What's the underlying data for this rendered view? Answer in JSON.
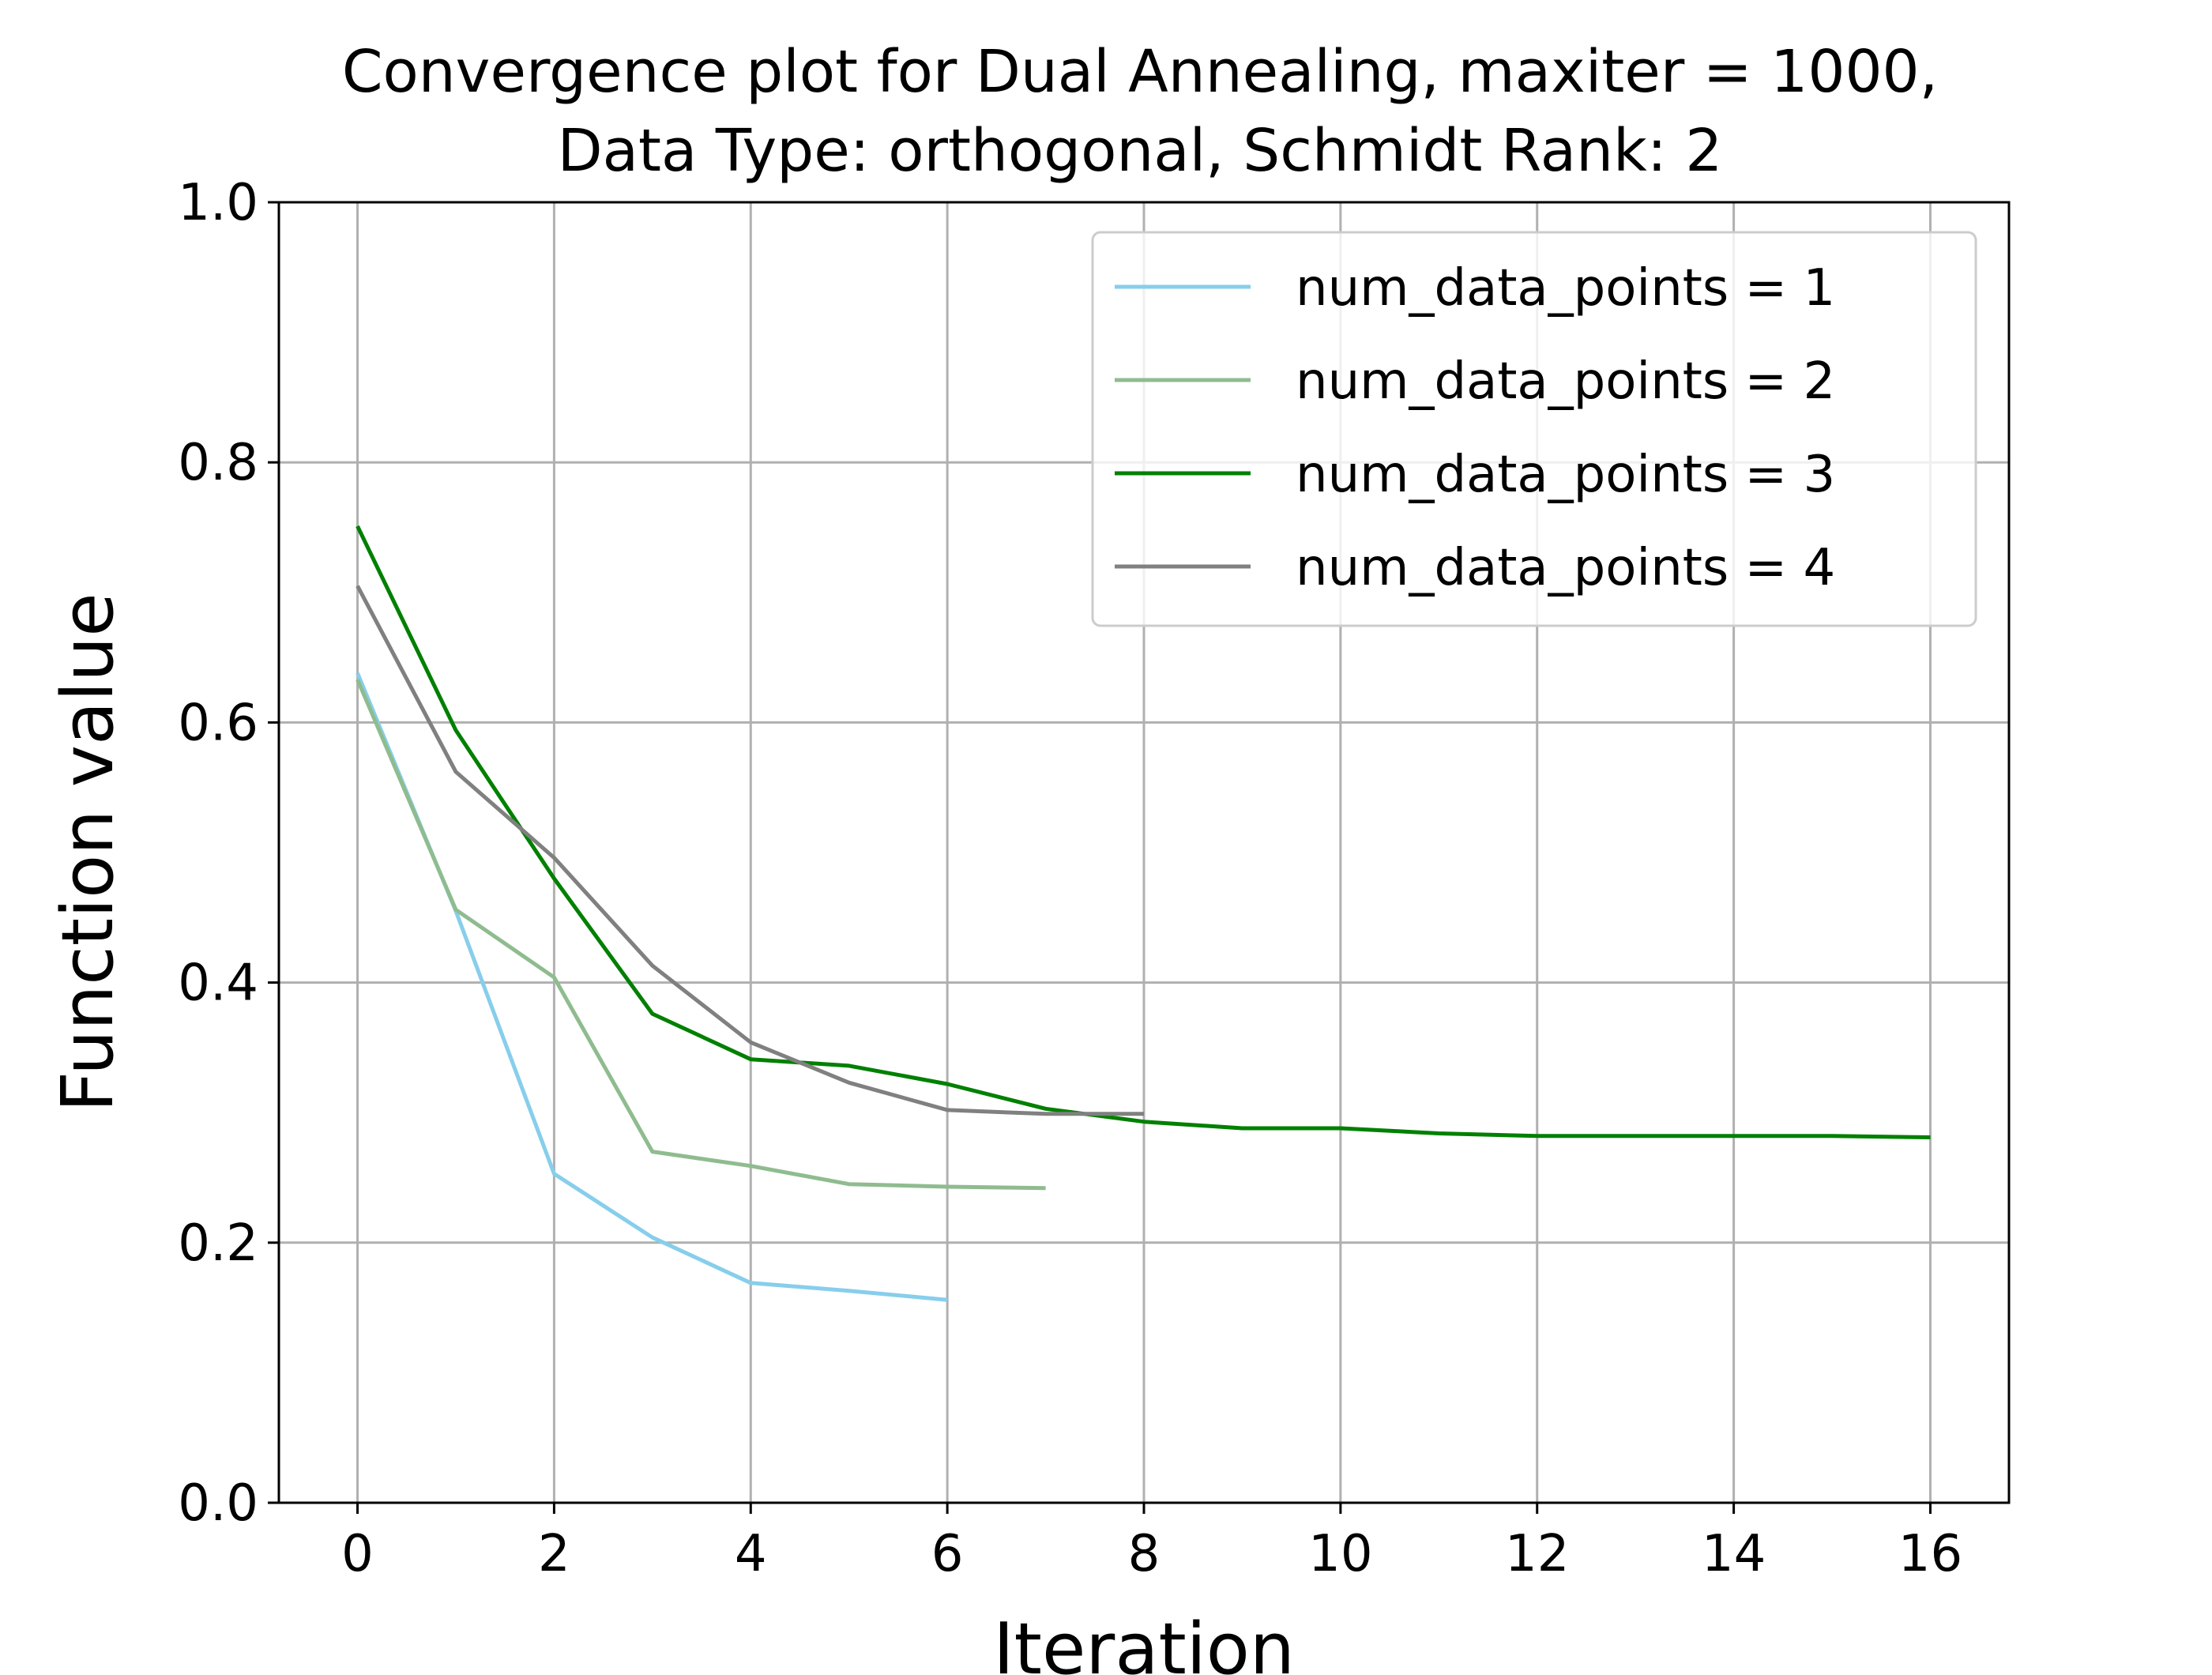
{
  "chart_data": {
    "type": "line",
    "title_lines": [
      "Convergence plot for Dual Annealing, maxiter = 1000,",
      "Data Type: orthogonal, Schmidt Rank: 2"
    ],
    "xlabel": "Iteration",
    "ylabel": "Function value",
    "xlim": [
      -0.8,
      16.8
    ],
    "ylim": [
      0.0,
      1.0
    ],
    "xticks": [
      0,
      2,
      4,
      6,
      8,
      10,
      12,
      14,
      16
    ],
    "xtick_labels": [
      "0",
      "2",
      "4",
      "6",
      "8",
      "10",
      "12",
      "14",
      "16"
    ],
    "yticks": [
      0.0,
      0.2,
      0.4,
      0.6,
      0.8,
      1.0
    ],
    "ytick_labels": [
      "0.0",
      "0.2",
      "0.4",
      "0.6",
      "0.8",
      "1.0"
    ],
    "grid": true,
    "legend_position": "top-right",
    "series": [
      {
        "name": "num_data_points = 1",
        "color": "#87ceeb",
        "x": [
          0,
          1,
          2,
          3,
          4,
          5,
          6
        ],
        "y": [
          0.638,
          0.455,
          0.253,
          0.204,
          0.169,
          0.163,
          0.156
        ]
      },
      {
        "name": "num_data_points = 2",
        "color": "#8fbc8f",
        "x": [
          0,
          1,
          2,
          3,
          4,
          5,
          6,
          7
        ],
        "y": [
          0.633,
          0.456,
          0.404,
          0.27,
          0.259,
          0.245,
          0.243,
          0.242
        ]
      },
      {
        "name": "num_data_points = 3",
        "color": "#008000",
        "x": [
          0,
          1,
          2,
          3,
          4,
          5,
          6,
          7,
          8,
          9,
          10,
          11,
          12,
          13,
          14,
          15,
          16
        ],
        "y": [
          0.751,
          0.594,
          0.48,
          0.376,
          0.341,
          0.336,
          0.322,
          0.303,
          0.293,
          0.288,
          0.288,
          0.284,
          0.282,
          0.282,
          0.282,
          0.282,
          0.281
        ]
      },
      {
        "name": "num_data_points = 4",
        "color": "#808080",
        "x": [
          0,
          1,
          2,
          3,
          4,
          5,
          6,
          7,
          8
        ],
        "y": [
          0.705,
          0.562,
          0.496,
          0.413,
          0.354,
          0.323,
          0.302,
          0.299,
          0.299
        ]
      }
    ]
  }
}
